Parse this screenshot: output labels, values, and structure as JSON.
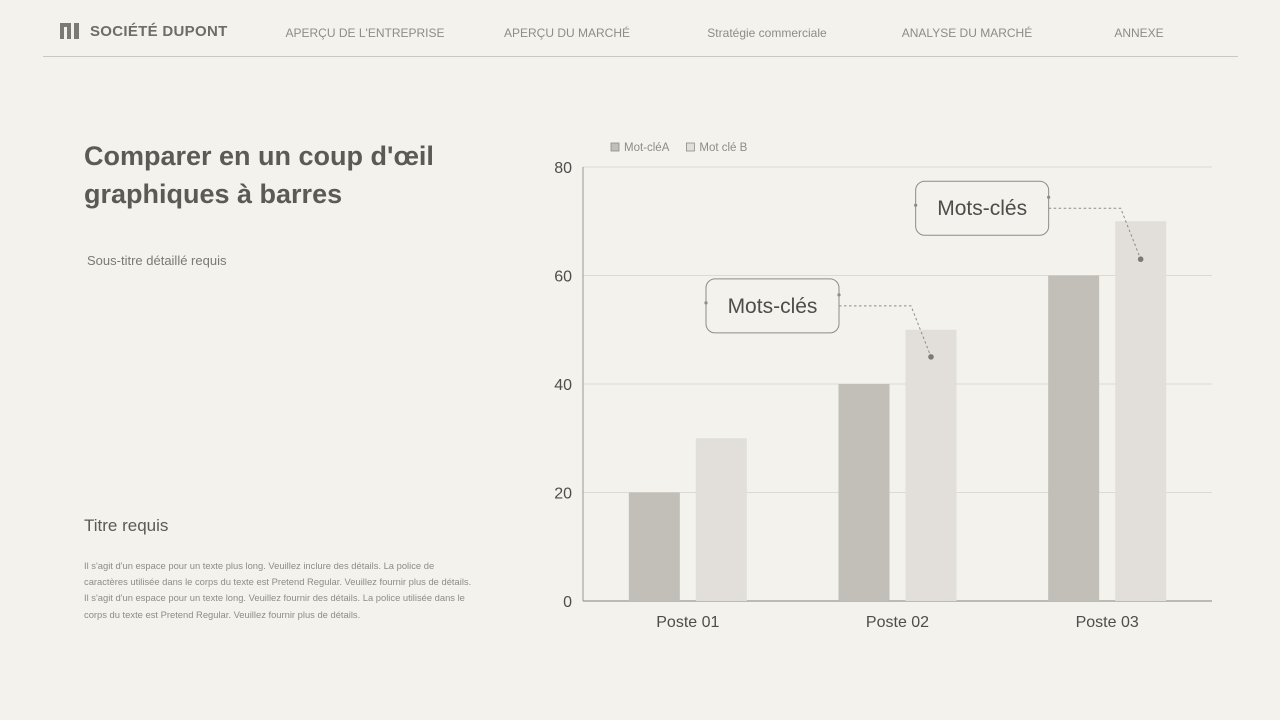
{
  "header": {
    "brand_name": "SOCIÉTÉ DUPONT",
    "brand_icon": "company-logo-icon",
    "nav": [
      "APERÇU DE L'ENTREPRISE",
      "APERÇU DU MARCHÉ",
      "Stratégie commerciale",
      "ANALYSE DU MARCHÉ",
      "ANNEXE"
    ]
  },
  "main": {
    "title": "Comparer en un coup d'œil graphiques à barres",
    "subtitle": "Sous-titre détaillé requis",
    "body_title": "Titre requis",
    "body_text": "Il s'agit d'un espace pour un texte plus long. Veuillez inclure des détails. La police de caractères utilisée dans le corps du texte est Pretend Regular. Veuillez fournir plus de détails. Il s'agit d'un espace pour un texte long. Veuillez fournir des détails. La police utilisée dans le corps du texte est Pretend Regular. Veuillez fournir plus de détails."
  },
  "colors": {
    "background": "#f3f2ed",
    "series_a": "#c2beb8",
    "series_b": "#e2dfda",
    "grid": "#dcdad5",
    "axis": "#9a9893"
  },
  "chart_data": {
    "type": "bar",
    "categories": [
      "Poste 01",
      "Poste 02",
      "Poste 03"
    ],
    "series": [
      {
        "name": "Mot-cléA",
        "values": [
          20,
          40,
          60
        ]
      },
      {
        "name": "Mot clé B",
        "values": [
          30,
          50,
          70
        ]
      }
    ],
    "ylim": [
      0,
      80
    ],
    "yticks": [
      0,
      20,
      40,
      60,
      80
    ],
    "grid": true,
    "legend": "top-left",
    "annotations": [
      {
        "text": "Mots-clés",
        "category": "Poste 02",
        "series": "Mot clé B",
        "value": 45
      },
      {
        "text": "Mots-clés",
        "category": "Poste 03",
        "series": "Mot clé B",
        "value": 63
      }
    ]
  }
}
